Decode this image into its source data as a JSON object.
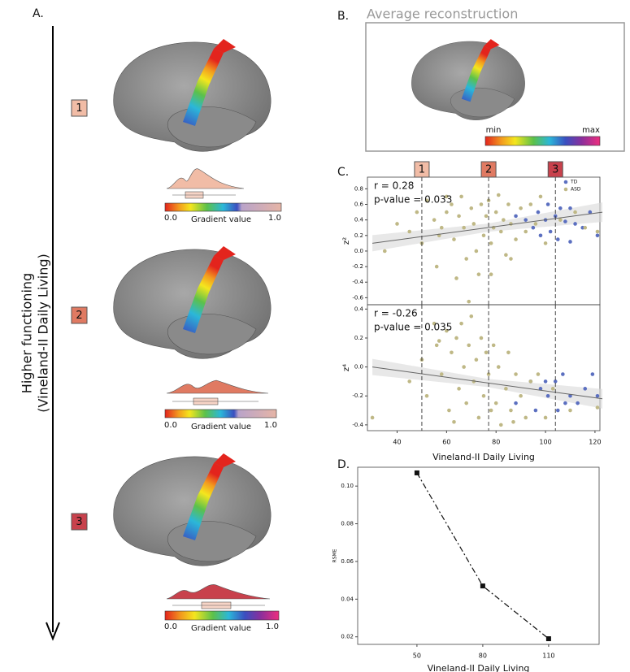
{
  "panel_labels": [
    "A.",
    "B.",
    "C.",
    "D."
  ],
  "panel_a": {
    "axis_label": [
      "Higher functioning",
      "(Vineland-II Daily Living)"
    ],
    "levels": [
      {
        "label": "1",
        "color": "#f1bca6"
      },
      {
        "label": "2",
        "color": "#e07a62"
      },
      {
        "label": "3",
        "color": "#c8414c"
      }
    ],
    "colorbar": {
      "min": "0.0",
      "max": "1.0",
      "title": "Gradient value"
    }
  },
  "panel_b": {
    "title": "Average reconstruction",
    "colorbar": {
      "min": "min",
      "max": "max"
    }
  },
  "chart_data": [
    {
      "type": "scatter",
      "ylabel": "z²",
      "annotations": [
        "r = 0.28",
        "p-value = 0.033"
      ],
      "legend": "upper right",
      "xlim": [
        28,
        122
      ],
      "ylim": [
        -0.69,
        0.95
      ],
      "yticks": [
        -0.6,
        -0.4,
        -0.2,
        {
          "value": 0,
          "label": "0.0"
        },
        0.2,
        0.4,
        0.6,
        0.8
      ],
      "thresholds": [
        50,
        77,
        104
      ],
      "fit": {
        "x": [
          30,
          123
        ],
        "values": [
          0.1,
          0.5
        ]
      },
      "series": [
        {
          "name": "TD",
          "color": "#5b6fc0",
          "x": [
            101,
            106,
            110,
            97,
            104,
            92,
            100,
            108,
            112,
            95,
            102,
            115,
            98,
            105,
            110,
            121,
            118,
            88
          ],
          "values": [
            0.6,
            0.55,
            0.55,
            0.5,
            0.45,
            0.4,
            0.4,
            0.38,
            0.35,
            0.3,
            0.25,
            0.3,
            0.2,
            0.15,
            0.12,
            0.2,
            0.5,
            0.45
          ]
        },
        {
          "name": "ASD",
          "color": "#bfb886",
          "x": [
            35,
            40,
            45,
            48,
            52,
            55,
            57,
            58,
            60,
            62,
            63,
            65,
            66,
            67,
            68,
            70,
            71,
            72,
            73,
            74,
            75,
            76,
            77,
            78,
            79,
            80,
            81,
            82,
            83,
            84,
            85,
            86,
            88,
            90,
            92,
            94,
            96,
            98,
            100,
            106,
            112,
            116,
            121,
            64,
            69,
            56,
            50,
            60,
            86,
            78
          ],
          "values": [
            0.0,
            0.35,
            0.25,
            0.5,
            0.65,
            0.4,
            0.2,
            0.3,
            0.5,
            0.6,
            0.15,
            0.45,
            0.7,
            0.3,
            -0.1,
            0.55,
            0.35,
            0.0,
            -0.3,
            0.6,
            0.2,
            0.45,
            0.65,
            0.1,
            0.3,
            0.5,
            0.72,
            0.25,
            0.4,
            -0.05,
            0.6,
            0.35,
            0.15,
            0.55,
            0.25,
            0.6,
            0.35,
            0.7,
            0.1,
            0.4,
            0.5,
            0.3,
            0.25,
            -0.35,
            -0.65,
            -0.2,
            0.1,
            0.7,
            -0.1,
            -0.3
          ]
        }
      ]
    },
    {
      "type": "scatter",
      "ylabel": "z⁴",
      "annotations": [
        "r = -0.26",
        "p-value = 0.035"
      ],
      "xlabel": "Vineland-II Daily Living",
      "xlim": [
        28,
        122
      ],
      "ylim": [
        -0.44,
        0.43
      ],
      "xticks": [
        40,
        60,
        80,
        100,
        120
      ],
      "yticks": [
        -0.4,
        -0.2,
        {
          "value": 0,
          "label": "0.0"
        },
        0.2,
        0.4
      ],
      "thresholds": [
        50,
        77,
        104
      ],
      "fit": {
        "x": [
          30,
          123
        ],
        "values": [
          0.0,
          -0.22
        ]
      },
      "series": [
        {
          "name": "TD",
          "color": "#5b6fc0",
          "x": [
            98,
            101,
            104,
            107,
            110,
            113,
            116,
            119,
            96,
            105,
            100,
            108,
            121,
            88,
            94
          ],
          "values": [
            -0.15,
            -0.2,
            -0.1,
            -0.05,
            -0.2,
            -0.25,
            -0.15,
            -0.05,
            -0.3,
            -0.3,
            -0.1,
            -0.25,
            -0.2,
            -0.25,
            -0.1
          ]
        },
        {
          "name": "ASD",
          "color": "#bfb886",
          "x": [
            30,
            45,
            50,
            52,
            55,
            56,
            58,
            60,
            61,
            62,
            64,
            65,
            66,
            67,
            68,
            69,
            70,
            71,
            72,
            73,
            74,
            75,
            76,
            77,
            78,
            79,
            80,
            81,
            82,
            84,
            85,
            86,
            88,
            90,
            92,
            94,
            97,
            100,
            103,
            110,
            121,
            57,
            63,
            87
          ],
          "values": [
            -0.35,
            -0.1,
            0.05,
            -0.2,
            0.3,
            0.15,
            -0.05,
            0.25,
            -0.3,
            0.1,
            0.2,
            -0.15,
            0.3,
            0.0,
            -0.25,
            0.15,
            0.35,
            -0.1,
            0.05,
            -0.35,
            0.2,
            -0.2,
            0.1,
            -0.05,
            -0.3,
            0.15,
            -0.25,
            0.0,
            -0.4,
            -0.15,
            0.1,
            -0.3,
            -0.05,
            -0.2,
            -0.35,
            -0.1,
            -0.05,
            -0.35,
            -0.15,
            -0.3,
            -0.28,
            0.18,
            -0.38,
            -0.38
          ]
        }
      ]
    },
    {
      "type": "line",
      "ylabel": "RSME",
      "xlabel": "Vineland-II Daily Living",
      "x": [
        50,
        80,
        110
      ],
      "values": [
        0.107,
        0.047,
        0.019
      ],
      "xlim": [
        23,
        133
      ],
      "ylim": [
        0.016,
        0.11
      ],
      "xticks": [
        50,
        80,
        110
      ],
      "yticks": [
        0.02,
        0.04,
        0.06,
        0.08,
        {
          "value": 0.1,
          "label": "0.10"
        }
      ]
    }
  ]
}
